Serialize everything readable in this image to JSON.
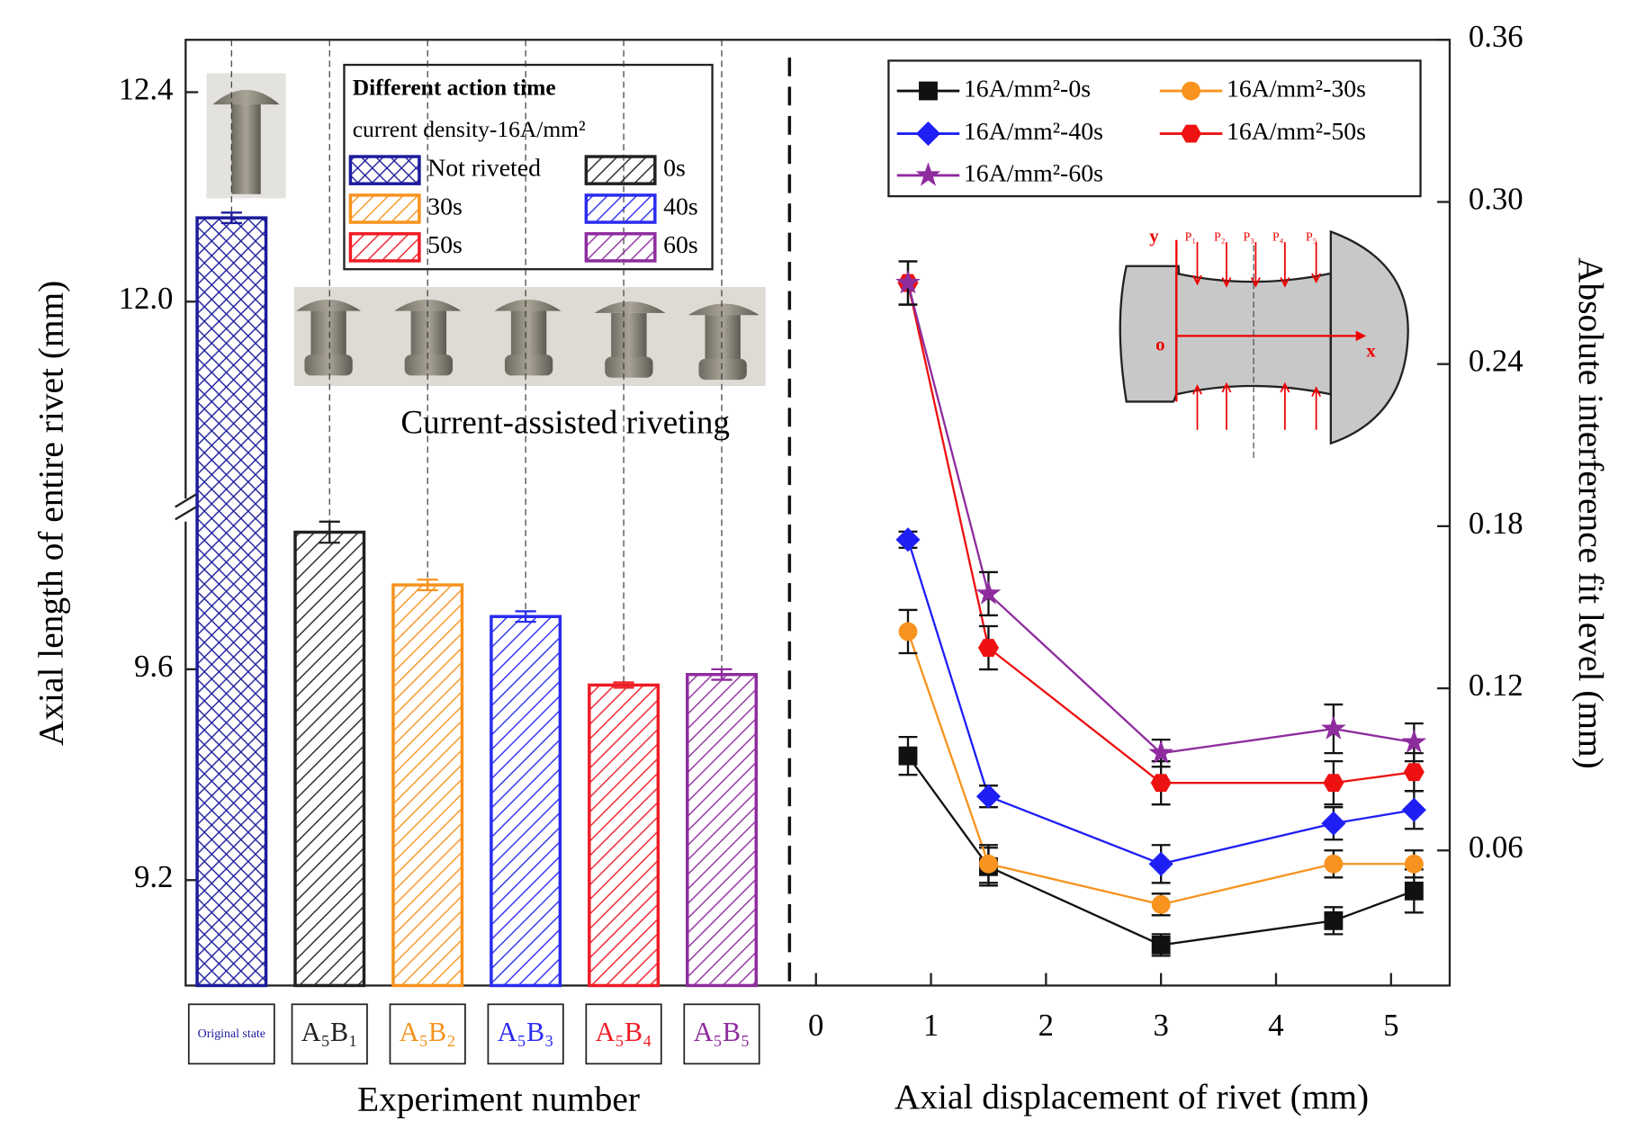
{
  "chart_data": [
    {
      "type": "bar",
      "ylabel": "Axial length of entire rivet (mm)",
      "xlabel": "Experiment number",
      "categories": [
        "Original state",
        "A₅B₁",
        "A₅B₂",
        "A₅B₃",
        "A₅B₄",
        "A₅B₅"
      ],
      "values": [
        12.16,
        9.86,
        9.76,
        9.7,
        9.57,
        9.59
      ],
      "errors": [
        0.01,
        0.02,
        0.01,
        0.01,
        0.005,
        0.01
      ],
      "colors": [
        "#1c1c9c",
        "#222222",
        "#f7931e",
        "#2b2bf0",
        "#ee1c25",
        "#8e2c9e"
      ],
      "hatches": [
        "cross",
        "diagonal",
        "diagonal",
        "diagonal",
        "diagonal",
        "diagonal"
      ],
      "ylim": [
        9.0,
        12.5
      ],
      "axis_break": [
        9.9,
        11.6
      ],
      "yticks": [
        9.2,
        9.6,
        {
          "value": 12.0,
          "label": "12.0"
        },
        12.4
      ],
      "legend_title": "Different action time",
      "legend_subtitle": "current density-16A/mm²",
      "legend": [
        "Not riveted",
        "0s",
        "30s",
        "40s",
        "50s",
        "60s"
      ],
      "annotation": "Current-assisted riveting"
    },
    {
      "type": "line",
      "ylabel": "Absolute interference fit level (mm)",
      "xlabel": "Axial displacement of rivet (mm)",
      "x": [
        0.8,
        1.5,
        3,
        4.5,
        5.2
      ],
      "xlim": [
        -0.23,
        5.51
      ],
      "xticks": [
        0,
        1,
        2,
        3,
        4,
        5
      ],
      "ylim": [
        0.01,
        0.36
      ],
      "yticks": [
        0.06,
        0.12,
        0.18,
        0.24,
        {
          "value": 0.3,
          "label": "0.30"
        },
        0.36
      ],
      "series": [
        {
          "name": "16A/mm²-0s",
          "color": "#111111",
          "marker": "square",
          "values": [
            0.095,
            0.054,
            0.025,
            0.034,
            0.045
          ],
          "errors": [
            0.007,
            0.007,
            0.004,
            0.005,
            0.008
          ]
        },
        {
          "name": "16A/mm²-30s",
          "color": "#f7931e",
          "marker": "circle",
          "values": [
            0.141,
            0.055,
            0.04,
            0.055,
            0.055
          ],
          "errors": [
            0.008,
            0.007,
            0.004,
            0.005,
            0.005
          ]
        },
        {
          "name": "16A/mm²-40s",
          "color": "#1f1ff5",
          "marker": "diamond",
          "values": [
            0.175,
            0.08,
            0.055,
            0.07,
            0.075
          ],
          "errors": [
            0.003,
            0.004,
            0.007,
            0.006,
            0.007
          ]
        },
        {
          "name": "16A/mm²-50s",
          "color": "#ee1111",
          "marker": "hexagon",
          "values": [
            0.27,
            0.135,
            0.085,
            0.085,
            0.089
          ],
          "errors": [
            0.008,
            0.008,
            0.008,
            0.008,
            0.007
          ]
        },
        {
          "name": "16A/mm²-60s",
          "color": "#8e2c9e",
          "marker": "star",
          "values": [
            0.27,
            0.155,
            0.096,
            0.105,
            0.1
          ],
          "errors": [
            0.008,
            0.008,
            0.005,
            0.009,
            0.007
          ]
        }
      ],
      "diagram_labels": [
        "y",
        "o",
        "x",
        "P₁",
        "P₂",
        "P₃",
        "P₄",
        "P₅"
      ]
    }
  ]
}
